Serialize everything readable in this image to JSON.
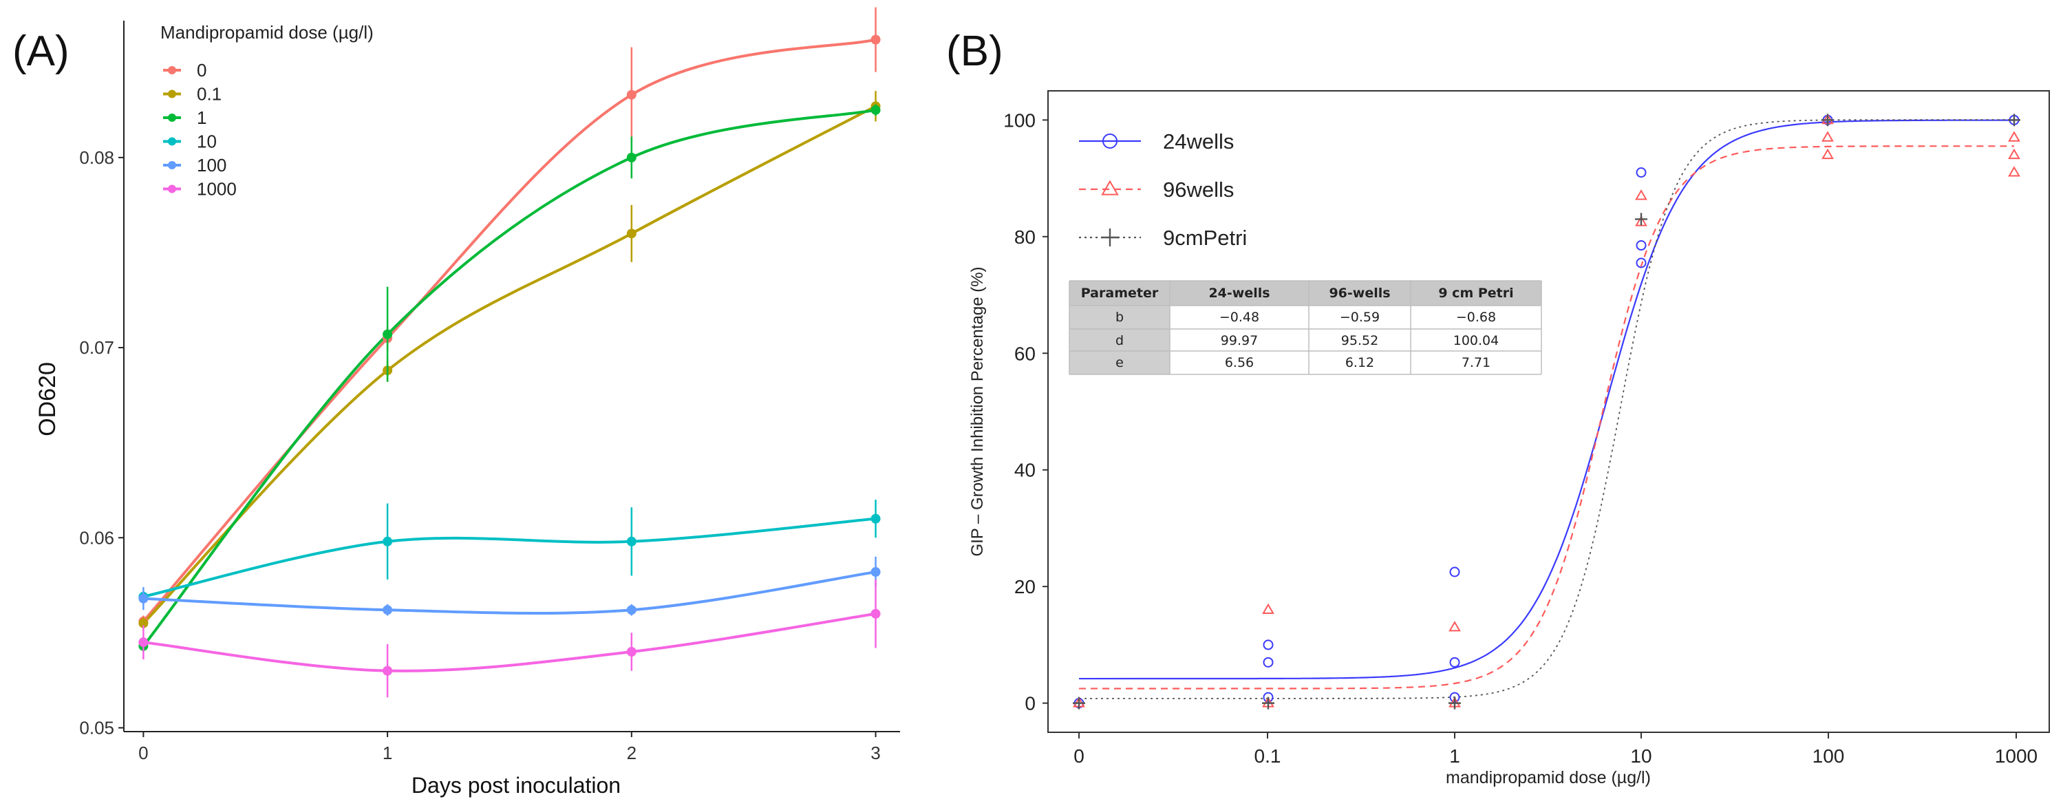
{
  "panels": {
    "a_label": "(A)",
    "b_label": "(B)"
  },
  "chart_data": [
    {
      "type": "line",
      "panel": "(A)",
      "xlabel": "Days post inoculation",
      "ylabel": "OD620",
      "x": [
        0,
        1,
        2,
        3
      ],
      "x_ticks": [
        "0",
        "1",
        "2",
        "3"
      ],
      "xlim": [
        -0.08,
        3.1
      ],
      "y_ticks": [
        "0.05",
        "0.06",
        "0.07",
        "0.08"
      ],
      "ylim": [
        0.0498,
        0.0872
      ],
      "legend_title": "Mandipropamid dose (µg/l)",
      "legend_position": "top-left",
      "series": [
        {
          "name": "0",
          "color": "#f8766d",
          "values": [
            0.0556,
            0.0705,
            0.0833,
            0.0862
          ],
          "err": [
            0.0003,
            0.0006,
            0.0025,
            0.0017
          ]
        },
        {
          "name": "0.1",
          "color": "#b79f00",
          "values": [
            0.0555,
            0.0688,
            0.076,
            0.0827
          ],
          "err": [
            0.0003,
            0.0006,
            0.0015,
            0.0008
          ]
        },
        {
          "name": "1",
          "color": "#00ba38",
          "values": [
            0.0543,
            0.0707,
            0.08,
            0.0825
          ],
          "err": [
            0.0003,
            0.0025,
            0.0011,
            0.0003
          ]
        },
        {
          "name": "10",
          "color": "#00bfc4",
          "values": [
            0.0569,
            0.0598,
            0.0598,
            0.061
          ],
          "err": [
            0.0003,
            0.002,
            0.0018,
            0.001
          ]
        },
        {
          "name": "100",
          "color": "#619cff",
          "values": [
            0.0568,
            0.0562,
            0.0562,
            0.0582
          ],
          "err": [
            0.0006,
            0.0003,
            0.0003,
            0.0008
          ]
        },
        {
          "name": "1000",
          "color": "#f564e3",
          "values": [
            0.0545,
            0.053,
            0.054,
            0.056
          ],
          "err": [
            0.0009,
            0.0014,
            0.001,
            0.0018
          ]
        }
      ]
    },
    {
      "type": "scatter",
      "panel": "(B)",
      "xlabel": "mandipropamid dose (µg/l)",
      "ylabel": "GIP – Growth Inhibition Percentage (%)",
      "x_scale": "log",
      "x_ticks": [
        "0",
        "0.1",
        "1",
        "10",
        "100",
        "1000"
      ],
      "x_tick_values": [
        0,
        0.1,
        1,
        10,
        100,
        1000
      ],
      "ylim": [
        -5,
        105
      ],
      "y_ticks": [
        "0",
        "20",
        "40",
        "60",
        "80",
        "100"
      ],
      "legend_position": "top-left",
      "series": [
        {
          "name": "24wells",
          "color": "#3a3aff",
          "marker": "circle",
          "line": "solid",
          "points": [
            [
              0,
              0
            ],
            [
              0.1,
              10
            ],
            [
              0.1,
              7
            ],
            [
              0.1,
              1
            ],
            [
              1,
              22.5
            ],
            [
              1,
              7
            ],
            [
              1,
              1
            ],
            [
              10,
              91
            ],
            [
              10,
              78.5
            ],
            [
              10,
              75.5
            ],
            [
              100,
              100
            ],
            [
              1000,
              100
            ]
          ],
          "fit": {
            "b": -0.48,
            "c": 4.2,
            "d": 99.97,
            "e": 6.56
          }
        },
        {
          "name": "96wells",
          "color": "#ff5a5a",
          "marker": "triangle",
          "line": "dashed",
          "points": [
            [
              0,
              0
            ],
            [
              0.1,
              16
            ],
            [
              0.1,
              0
            ],
            [
              1,
              13
            ],
            [
              1,
              0
            ],
            [
              10,
              87
            ],
            [
              10,
              82.5
            ],
            [
              100,
              100
            ],
            [
              100,
              97
            ],
            [
              100,
              94
            ],
            [
              1000,
              97
            ],
            [
              1000,
              94
            ],
            [
              1000,
              91
            ]
          ],
          "fit": {
            "b": -0.59,
            "c": 2.5,
            "d": 95.52,
            "e": 6.12
          }
        },
        {
          "name": "9cmPetri",
          "color": "#555555",
          "marker": "plus",
          "line": "dotted",
          "points": [
            [
              0,
              0
            ],
            [
              0.1,
              0
            ],
            [
              1,
              0
            ],
            [
              10,
              83
            ],
            [
              100,
              100
            ],
            [
              1000,
              100
            ]
          ],
          "fit": {
            "b": -0.68,
            "c": 0.8,
            "d": 100.04,
            "e": 7.71
          }
        }
      ],
      "table": {
        "headers": [
          "Parameter",
          "24-wells",
          "96-wells",
          "9 cm Petri"
        ],
        "rows": [
          [
            "b",
            "−0.48",
            "−0.59",
            "−0.68"
          ],
          [
            "d",
            "99.97",
            "95.52",
            "100.04"
          ],
          [
            "e",
            "6.56",
            "6.12",
            "7.71"
          ]
        ]
      }
    }
  ]
}
